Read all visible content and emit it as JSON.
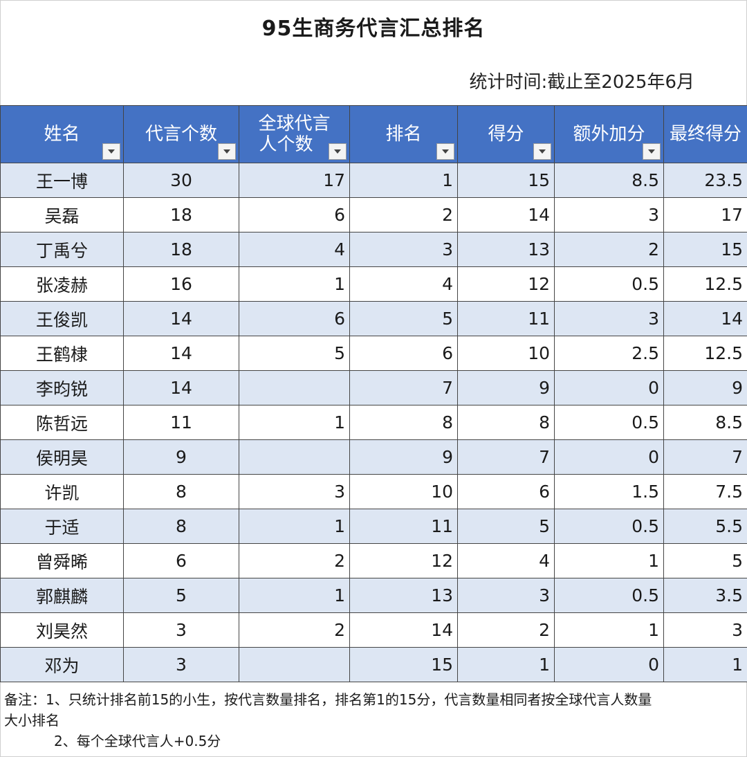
{
  "title": "95生商务代言汇总排名",
  "stat_time": "统计时间:截止至2025年6月",
  "table": {
    "headers": [
      {
        "line1": "姓名",
        "line2": ""
      },
      {
        "line1": "代言个数",
        "line2": ""
      },
      {
        "line1": "全球代言",
        "line2": "人个数"
      },
      {
        "line1": "排名",
        "line2": ""
      },
      {
        "line1": "得分",
        "line2": ""
      },
      {
        "line1": "额外加分",
        "line2": ""
      },
      {
        "line1": "最终得分",
        "line2": ""
      }
    ],
    "rows": [
      [
        "王一博",
        "30",
        "17",
        "1",
        "15",
        "8.5",
        "23.5"
      ],
      [
        "吴磊",
        "18",
        "6",
        "2",
        "14",
        "3",
        "17"
      ],
      [
        "丁禹兮",
        "18",
        "4",
        "3",
        "13",
        "2",
        "15"
      ],
      [
        "张凌赫",
        "16",
        "1",
        "4",
        "12",
        "0.5",
        "12.5"
      ],
      [
        "王俊凯",
        "14",
        "6",
        "5",
        "11",
        "3",
        "14"
      ],
      [
        "王鹤棣",
        "14",
        "5",
        "6",
        "10",
        "2.5",
        "12.5"
      ],
      [
        "李昀锐",
        "14",
        "",
        "7",
        "9",
        "0",
        "9"
      ],
      [
        "陈哲远",
        "11",
        "1",
        "8",
        "8",
        "0.5",
        "8.5"
      ],
      [
        "侯明昊",
        "9",
        "",
        "9",
        "7",
        "0",
        "7"
      ],
      [
        "许凯",
        "8",
        "3",
        "10",
        "6",
        "1.5",
        "7.5"
      ],
      [
        "于适",
        "8",
        "1",
        "11",
        "5",
        "0.5",
        "5.5"
      ],
      [
        "曾舜晞",
        "6",
        "2",
        "12",
        "4",
        "1",
        "5"
      ],
      [
        "郭麒麟",
        "5",
        "1",
        "13",
        "3",
        "0.5",
        "3.5"
      ],
      [
        "刘昊然",
        "3",
        "2",
        "14",
        "2",
        "1",
        "3"
      ],
      [
        "邓为",
        "3",
        "",
        "15",
        "1",
        "0",
        "1"
      ]
    ]
  },
  "notes": {
    "line1": "备注：1、只统计排名前15的小生，按代言数量排名，排名第1的15分，代言数量相同者按全球代言人数量",
    "line2": "大小排名",
    "line3": "2、每个全球代言人+0.5分"
  },
  "colors": {
    "header_bg": "#4472c4",
    "band_bg": "#dde6f3"
  }
}
